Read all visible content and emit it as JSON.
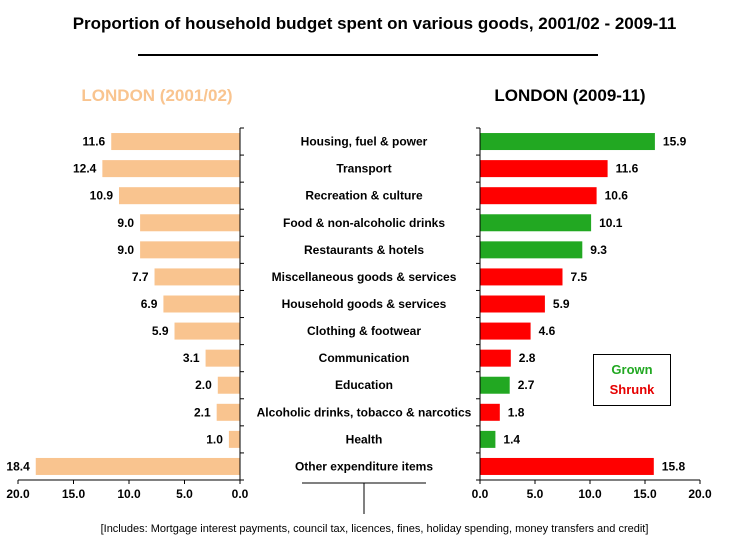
{
  "title": "Proportion of household budget spent on various goods, 2001/02 - 2009-11",
  "left_header": "LONDON (2001/02)",
  "right_header": "LONDON (2009-11)",
  "legend": {
    "grown": "Grown",
    "shrunk": "Shrunk"
  },
  "footnote": "[Includes: Mortgage interest payments, council tax, licences, fines, holiday spending, money transfers and credit]",
  "colors": {
    "left_bar": "#f9c48f",
    "grown": "#22a822",
    "shrunk": "#ff0000"
  },
  "chart_data": {
    "type": "bar",
    "categories": [
      "Housing, fuel & power",
      "Transport",
      "Recreation & culture",
      "Food & non-alcoholic drinks",
      "Restaurants & hotels",
      "Miscellaneous goods & services",
      "Household goods & services",
      "Clothing & footwear",
      "Communication",
      "Education",
      "Alcoholic drinks, tobacco & narcotics",
      "Health",
      "Other expenditure items"
    ],
    "series": [
      {
        "name": "LONDON (2001/02)",
        "values": [
          11.6,
          12.4,
          10.9,
          9.0,
          9.0,
          7.7,
          6.9,
          5.9,
          3.1,
          2.0,
          2.1,
          1.0,
          18.4
        ]
      },
      {
        "name": "LONDON (2009-11)",
        "values": [
          15.9,
          11.6,
          10.6,
          10.1,
          9.3,
          7.5,
          5.9,
          4.6,
          2.8,
          2.7,
          1.8,
          1.4,
          15.8
        ]
      }
    ],
    "right_status": [
      "grown",
      "shrunk",
      "shrunk",
      "grown",
      "grown",
      "shrunk",
      "shrunk",
      "shrunk",
      "shrunk",
      "grown",
      "shrunk",
      "grown",
      "shrunk"
    ],
    "xlim": [
      0,
      20
    ],
    "ticks": [
      "0.0",
      "5.0",
      "10.0",
      "15.0",
      "20.0"
    ],
    "left_ticks": [
      "20.0",
      "15.0",
      "10.0",
      "5.0",
      "0.0"
    ],
    "grid": false,
    "legend_position": "right-middle"
  }
}
